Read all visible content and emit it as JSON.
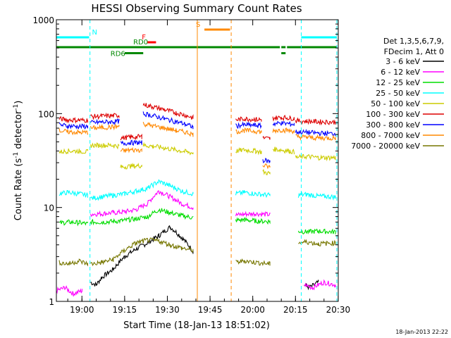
{
  "chart_data": {
    "type": "line",
    "title": "HESSI Observing Summary Count Rates",
    "xlabel": "Start Time (18-Jan-13 18:51:02)",
    "ylabel_main": "Count Rate (s",
    "ylabel_sup1": "-1",
    "ylabel_mid": " detector",
    "ylabel_sup2": "-1",
    "ylabel_end": ")",
    "yscale": "log",
    "ylim": [
      1,
      1000
    ],
    "xlim_minutes": [
      0,
      99
    ],
    "x_ticks": [
      {
        "label": "19:00",
        "minutes": 8.97
      },
      {
        "label": "19:15",
        "minutes": 23.97
      },
      {
        "label": "19:30",
        "minutes": 38.97
      },
      {
        "label": "19:45",
        "minutes": 53.97
      },
      {
        "label": "20:00",
        "minutes": 68.97
      },
      {
        "label": "20:15",
        "minutes": 83.97
      },
      {
        "label": "20:30",
        "minutes": 98.97
      }
    ],
    "y_ticks": [
      {
        "label": "1",
        "value": 1
      },
      {
        "label": "10",
        "value": 10
      },
      {
        "label": "100",
        "value": 100
      },
      {
        "label": "1000",
        "value": 1000
      }
    ],
    "legend_header": [
      "Det 1,3,5,6,7,9,",
      "FDecim 1, Att 0"
    ],
    "legend_position": "right",
    "series": [
      {
        "name": "3 - 6 keV",
        "color": "#000000",
        "segments": [
          {
            "x": [
              12,
              14,
              16,
              20,
              24,
              28,
              32,
              36,
              40,
              44,
              48
            ],
            "y": [
              1.6,
              1.5,
              1.8,
              2.2,
              3.0,
              3.6,
              4.2,
              5.0,
              6.2,
              4.8,
              3.4
            ]
          },
          {
            "x": [
              87,
              89,
              92
            ],
            "y": [
              1.5,
              1.4,
              1.6
            ]
          }
        ]
      },
      {
        "name": "6 - 12 keV",
        "color": "#ff00ff",
        "segments": [
          {
            "x": [
              0,
              3,
              6,
              9
            ],
            "y": [
              1.3,
              1.4,
              1.2,
              1.3
            ]
          },
          {
            "x": [
              12,
              16,
              20,
              24,
              28,
              32,
              36,
              40,
              44,
              48
            ],
            "y": [
              8.5,
              8.6,
              8.8,
              9.0,
              9.5,
              11,
              15,
              13,
              11,
              10
            ]
          },
          {
            "x": [
              63,
              66,
              70,
              75
            ],
            "y": [
              8.3,
              8.5,
              8.6,
              8.4
            ]
          },
          {
            "x": [
              87,
              90,
              94,
              98
            ],
            "y": [
              1.5,
              1.4,
              1.6,
              1.5
            ]
          }
        ]
      },
      {
        "name": "12 - 25 keV",
        "color": "#00dd00",
        "segments": [
          {
            "x": [
              1,
              4,
              8,
              11
            ],
            "y": [
              6.8,
              7.0,
              6.9,
              6.7
            ]
          },
          {
            "x": [
              12,
              16,
              20,
              24,
              28,
              32,
              36,
              40,
              44,
              48
            ],
            "y": [
              7.0,
              7.0,
              7.1,
              7.3,
              7.6,
              8.0,
              9.5,
              8.8,
              8.2,
              7.8
            ]
          },
          {
            "x": [
              63,
              66,
              70,
              75
            ],
            "y": [
              7.3,
              7.4,
              7.2,
              7.1
            ]
          },
          {
            "x": [
              85,
              88,
              92,
              98
            ],
            "y": [
              5.6,
              5.5,
              5.6,
              5.5
            ]
          }
        ]
      },
      {
        "name": "25 - 50 keV",
        "color": "#00ffff",
        "segments": [
          {
            "x": [
              1,
              4,
              8,
              11
            ],
            "y": [
              14,
              14.5,
              14,
              13.5
            ]
          },
          {
            "x": [
              12,
              16,
              20,
              24,
              28,
              32,
              36,
              40,
              44,
              48
            ],
            "y": [
              12.5,
              13,
              13.5,
              14,
              15,
              16,
              19,
              17,
              15,
              14
            ]
          },
          {
            "x": [
              63,
              66,
              70,
              75
            ],
            "y": [
              14,
              14.5,
              14,
              13.5
            ]
          },
          {
            "x": [
              85,
              88,
              92,
              98
            ],
            "y": [
              13.5,
              13.8,
              13.2,
              13.0
            ]
          }
        ]
      },
      {
        "name": "50 - 100 keV",
        "color": "#cccc00",
        "segments": [
          {
            "x": [
              1,
              4,
              8,
              11
            ],
            "y": [
              39,
              40,
              40,
              39
            ]
          },
          {
            "x": [
              12,
              16,
              20,
              22
            ],
            "y": [
              46,
              46,
              46,
              45
            ]
          },
          {
            "x": [
              22.5,
              26,
              30
            ],
            "y": [
              27,
              27.5,
              28
            ]
          },
          {
            "x": [
              30.5,
              34,
              38,
              42,
              46,
              48
            ],
            "y": [
              46,
              45,
              43,
              41,
              39,
              38
            ]
          },
          {
            "x": [
              63,
              66,
              70,
              72
            ],
            "y": [
              40,
              41,
              40,
              39
            ]
          },
          {
            "x": [
              72.5,
              75
            ],
            "y": [
              24,
              23
            ]
          },
          {
            "x": [
              76,
              79,
              82,
              83.5
            ],
            "y": [
              42,
              41,
              40,
              39
            ]
          },
          {
            "x": [
              84,
              88,
              92,
              98
            ],
            "y": [
              34,
              35,
              34,
              34
            ]
          }
        ]
      },
      {
        "name": "100 - 300 keV",
        "color": "#dd0000",
        "segments": [
          {
            "x": [
              1,
              4,
              8,
              11
            ],
            "y": [
              88,
              86,
              85,
              85
            ]
          },
          {
            "x": [
              12,
              16,
              20,
              22
            ],
            "y": [
              93,
              94,
              95,
              96
            ]
          },
          {
            "x": [
              22.5,
              26,
              30
            ],
            "y": [
              55,
              56,
              57
            ]
          },
          {
            "x": [
              30.5,
              34,
              38,
              42,
              46,
              48
            ],
            "y": [
              125,
              118,
              110,
              102,
              95,
              90
            ]
          },
          {
            "x": [
              63,
              66,
              70,
              72
            ],
            "y": [
              86,
              88,
              87,
              86
            ]
          },
          {
            "x": [
              72.5,
              75
            ],
            "y": [
              55,
              54
            ]
          },
          {
            "x": [
              76,
              79,
              82,
              83.5
            ],
            "y": [
              90,
              91,
              90,
              89
            ]
          },
          {
            "x": [
              84,
              88,
              92,
              98
            ],
            "y": [
              84,
              83,
              82,
              81
            ]
          }
        ]
      },
      {
        "name": "300 - 800 keV",
        "color": "#0000ff",
        "segments": [
          {
            "x": [
              1,
              4,
              8,
              11
            ],
            "y": [
              76,
              74,
              73,
              73
            ]
          },
          {
            "x": [
              12,
              16,
              20,
              22
            ],
            "y": [
              80,
              81,
              82,
              83
            ]
          },
          {
            "x": [
              22.5,
              26,
              30
            ],
            "y": [
              48,
              49,
              49
            ]
          },
          {
            "x": [
              30.5,
              34,
              38,
              42,
              46,
              48
            ],
            "y": [
              100,
              95,
              88,
              82,
              76,
              72
            ]
          },
          {
            "x": [
              63,
              66,
              70,
              72
            ],
            "y": [
              74,
              76,
              75,
              74
            ]
          },
          {
            "x": [
              72.5,
              75
            ],
            "y": [
              32,
              31
            ]
          },
          {
            "x": [
              76,
              79,
              82,
              83.5
            ],
            "y": [
              78,
              79,
              78,
              77
            ]
          },
          {
            "x": [
              84,
              88,
              92,
              98
            ],
            "y": [
              64,
              63,
              62,
              61
            ]
          }
        ]
      },
      {
        "name": "800 - 7000 keV",
        "color": "#ff8800",
        "segments": [
          {
            "x": [
              1,
              4,
              8,
              11
            ],
            "y": [
              66,
              64,
              63,
              63
            ]
          },
          {
            "x": [
              12,
              16,
              20,
              22
            ],
            "y": [
              70,
              71,
              72,
              73
            ]
          },
          {
            "x": [
              22.5,
              26,
              30
            ],
            "y": [
              40,
              41,
              41
            ]
          },
          {
            "x": [
              30.5,
              34,
              38,
              42,
              46,
              48
            ],
            "y": [
              78,
              74,
              70,
              66,
              63,
              60
            ]
          },
          {
            "x": [
              63,
              66,
              70,
              72
            ],
            "y": [
              64,
              66,
              65,
              64
            ]
          },
          {
            "x": [
              72.5,
              75
            ],
            "y": [
              28,
              27
            ]
          },
          {
            "x": [
              76,
              79,
              82,
              83.5
            ],
            "y": [
              66,
              67,
              66,
              65
            ]
          },
          {
            "x": [
              84,
              88,
              92,
              98
            ],
            "y": [
              57,
              56,
              55,
              55
            ]
          }
        ]
      },
      {
        "name": "7000 - 20000 keV",
        "color": "#777700",
        "segments": [
          {
            "x": [
              1,
              4,
              8,
              11
            ],
            "y": [
              2.6,
              2.5,
              2.7,
              2.5
            ]
          },
          {
            "x": [
              12,
              16,
              20,
              24,
              28,
              32,
              36,
              40,
              44,
              48
            ],
            "y": [
              2.5,
              2.6,
              2.8,
              3.5,
              4.2,
              4.5,
              4.4,
              4.0,
              3.7,
              3.5
            ]
          },
          {
            "x": [
              63,
              66,
              70,
              75
            ],
            "y": [
              2.6,
              2.7,
              2.6,
              2.5
            ]
          },
          {
            "x": [
              85,
              88,
              92,
              98
            ],
            "y": [
              4.2,
              4.3,
              4.1,
              4.2
            ]
          }
        ]
      }
    ],
    "annotation_bars": [
      {
        "label": "N",
        "color": "#00ffff",
        "log_level": 650,
        "x_ranges": [
          [
            0,
            11.5
          ],
          [
            86,
            98.5
          ]
        ],
        "label_x": 12.5
      },
      {
        "label": "RD0",
        "color": "#008800",
        "log_level": 510,
        "x_ranges": [
          [
            0,
            78.5
          ],
          [
            79,
            80.5
          ],
          [
            81,
            98.5
          ]
        ],
        "label_x": 27
      },
      {
        "label": "RD6",
        "color": "#008800",
        "log_level": 440,
        "x_ranges": [
          [
            24,
            30.5
          ],
          [
            79,
            80.5
          ]
        ],
        "label_x": 19
      },
      {
        "label": "F",
        "color": "#ff0000",
        "log_level": 575,
        "x_ranges": [
          [
            32,
            35
          ]
        ],
        "label_x": 30
      },
      {
        "label": "S",
        "color": "#ff8800",
        "log_level": 785,
        "x_ranges": [
          [
            52,
            61
          ]
        ],
        "label_x": 49
      }
    ],
    "vertical_lines": [
      {
        "minutes": 11.8,
        "color": "#00ffff",
        "style": "dashed"
      },
      {
        "minutes": 86,
        "color": "#00ffff",
        "style": "dashed"
      },
      {
        "minutes": 98.5,
        "color": "#00ffff",
        "style": "dashed"
      },
      {
        "minutes": 49.5,
        "color": "#ff8800",
        "style": "solid"
      },
      {
        "minutes": 61.4,
        "color": "#ff8800",
        "style": "dashed"
      }
    ],
    "footer_date": "18-Jan-2013 22:22"
  }
}
